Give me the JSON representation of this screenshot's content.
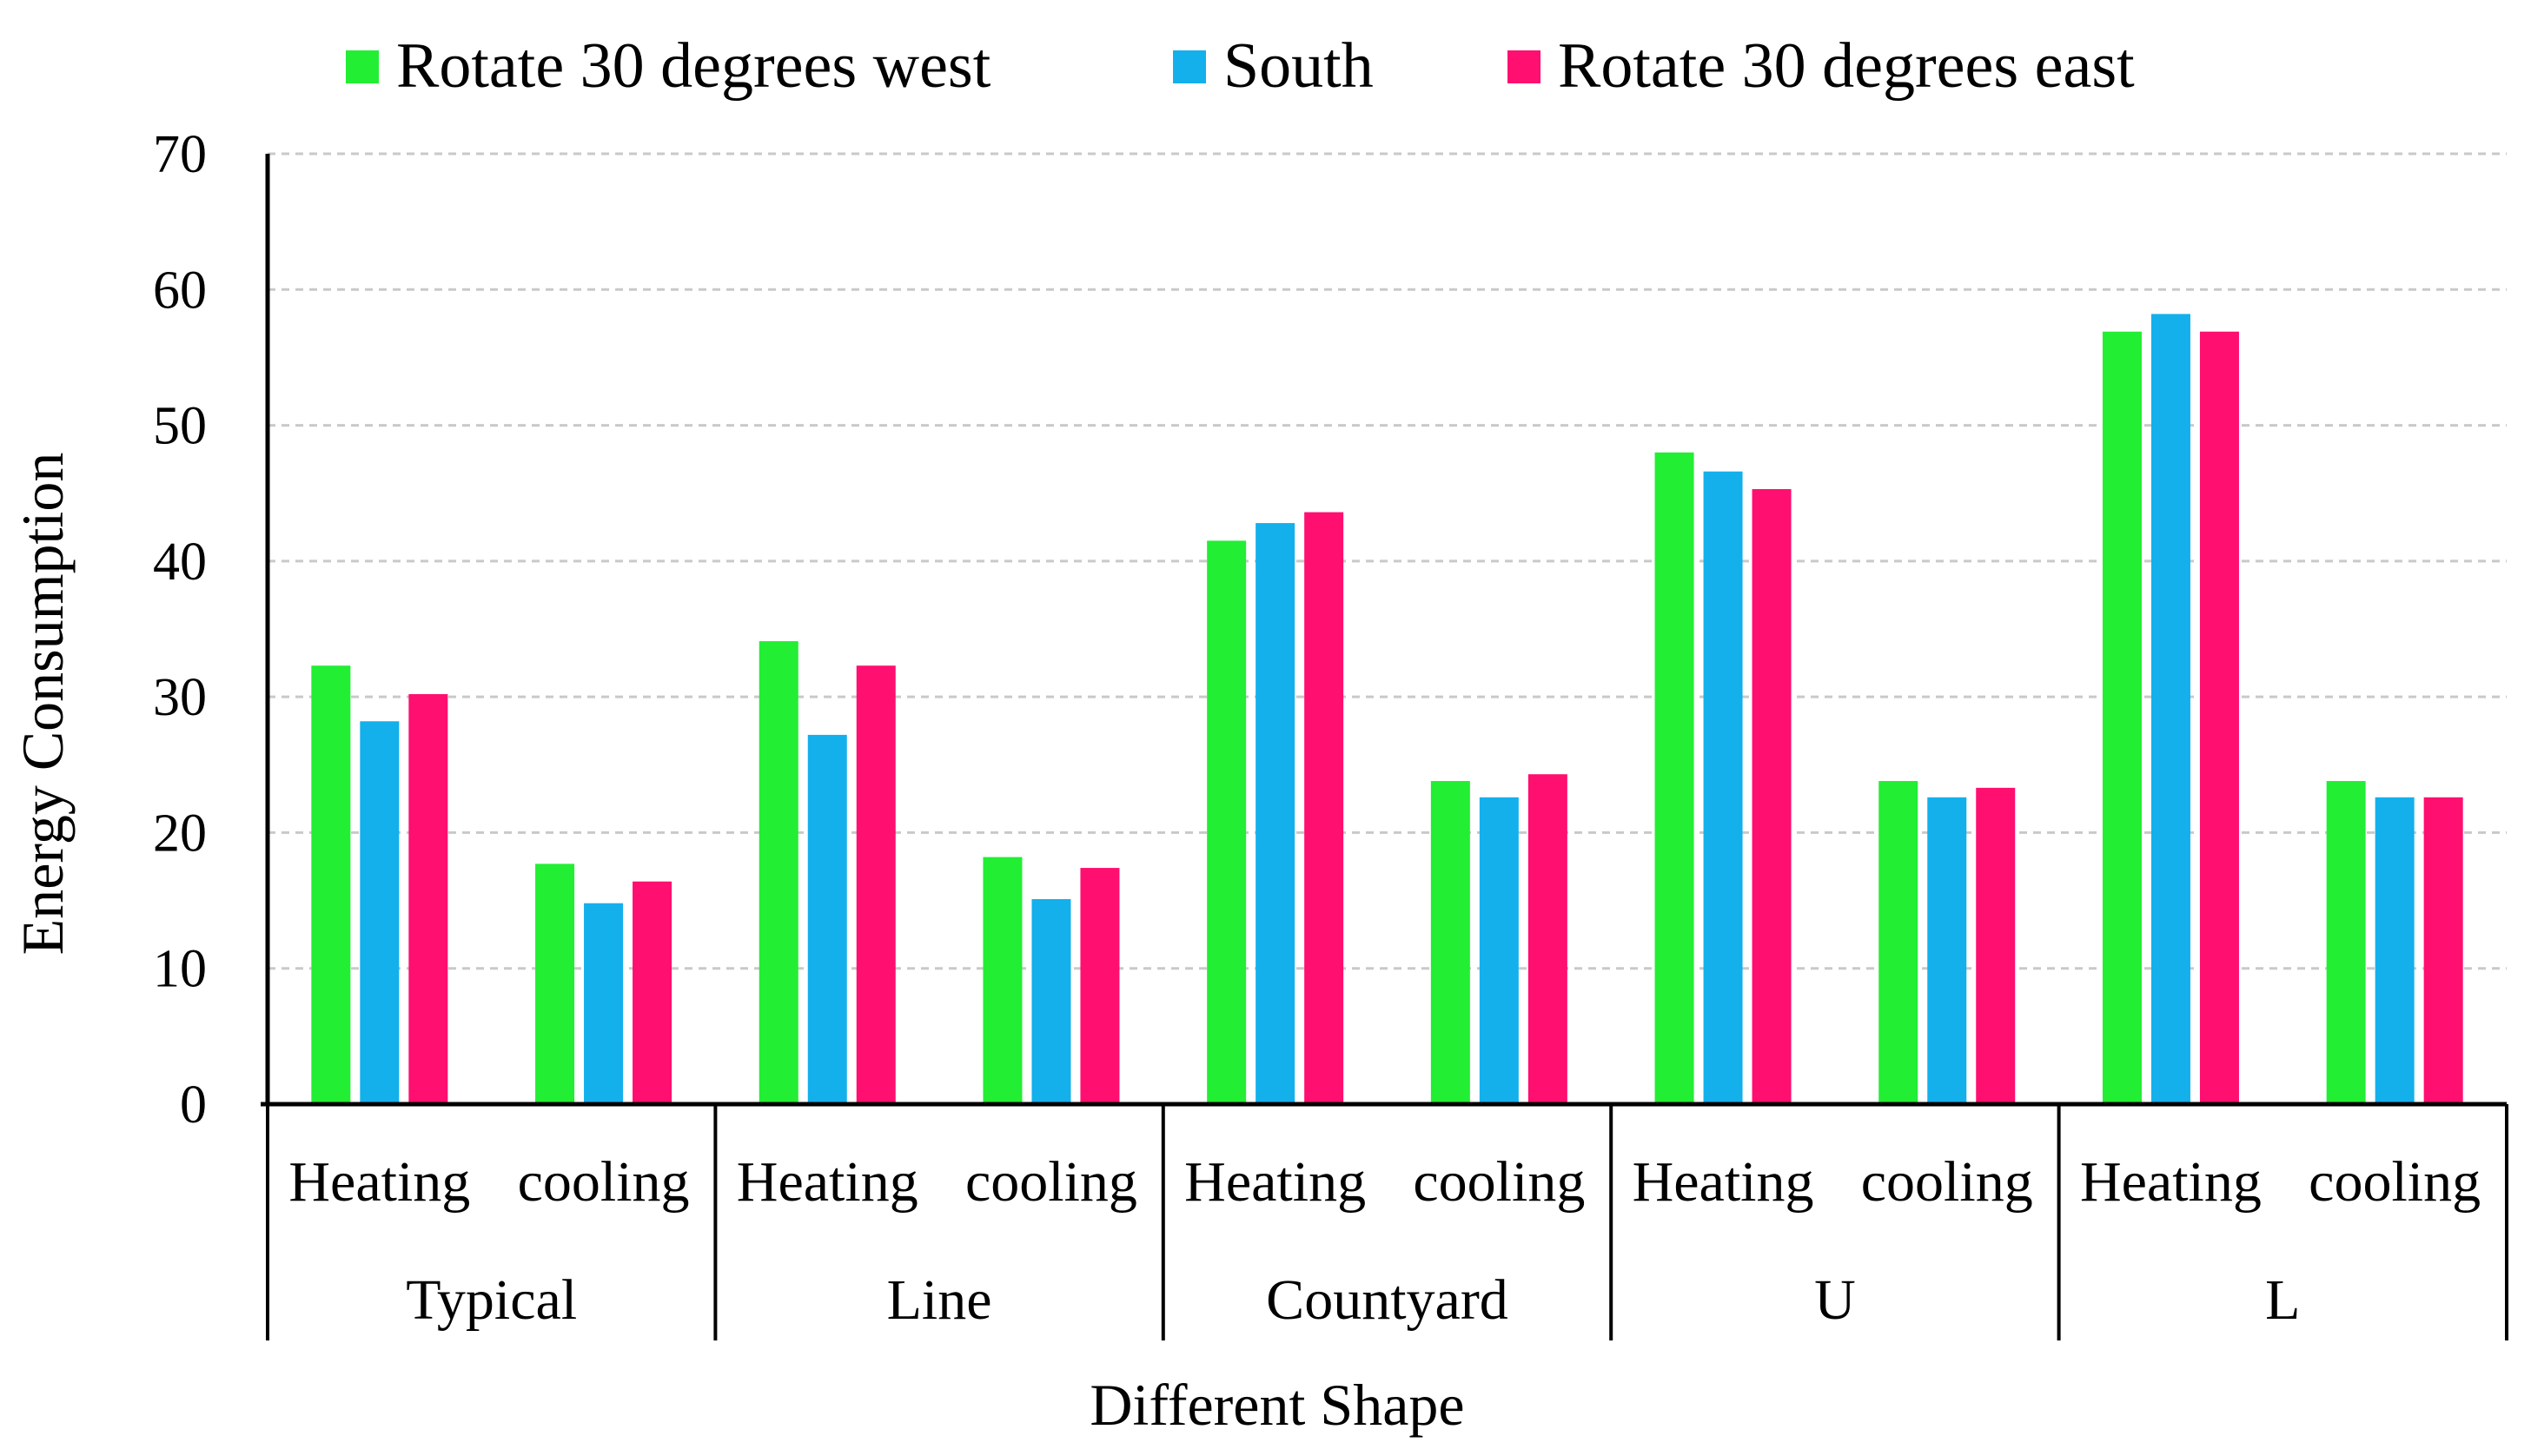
{
  "chart_data": {
    "type": "bar",
    "title": "",
    "xlabel": "Different Shape",
    "ylabel": "Energy Consumption",
    "ylim": [
      0,
      70
    ],
    "yticks": [
      0,
      10,
      20,
      30,
      40,
      50,
      60,
      70
    ],
    "grid": true,
    "legend_position": "top",
    "groups": [
      "Typical",
      "Line",
      "Countyard",
      "U",
      "L"
    ],
    "subcategories": [
      "Heating",
      "cooling"
    ],
    "categories": [
      "Typical Heating",
      "Typical cooling",
      "Line Heating",
      "Line cooling",
      "Countyard Heating",
      "Countyard cooling",
      "U Heating",
      "U cooling",
      "L Heating",
      "L cooling"
    ],
    "series": [
      {
        "name": "Rotate 30 degrees west",
        "color": "#22ee33",
        "values": [
          32.3,
          17.7,
          34.1,
          18.2,
          41.5,
          23.8,
          48.0,
          23.8,
          56.9,
          23.8
        ]
      },
      {
        "name": "South",
        "color": "#13b0ec",
        "values": [
          28.2,
          14.8,
          27.2,
          15.1,
          42.8,
          22.6,
          46.6,
          22.6,
          58.2,
          22.6
        ]
      },
      {
        "name": "Rotate 30 degrees east",
        "color": "#ff0f6f",
        "values": [
          30.2,
          16.4,
          32.3,
          17.4,
          43.6,
          24.3,
          45.3,
          23.3,
          56.9,
          22.6
        ]
      }
    ]
  }
}
